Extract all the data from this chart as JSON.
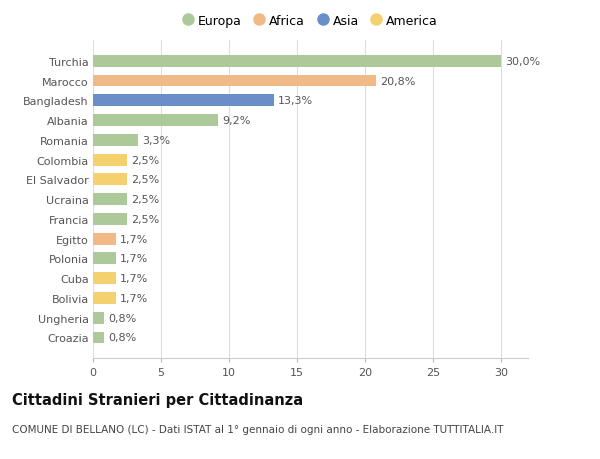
{
  "categories": [
    "Turchia",
    "Marocco",
    "Bangladesh",
    "Albania",
    "Romania",
    "Colombia",
    "El Salvador",
    "Ucraina",
    "Francia",
    "Egitto",
    "Polonia",
    "Cuba",
    "Bolivia",
    "Ungheria",
    "Croazia"
  ],
  "values": [
    30.0,
    20.8,
    13.3,
    9.2,
    3.3,
    2.5,
    2.5,
    2.5,
    2.5,
    1.7,
    1.7,
    1.7,
    1.7,
    0.8,
    0.8
  ],
  "labels": [
    "30,0%",
    "20,8%",
    "13,3%",
    "9,2%",
    "3,3%",
    "2,5%",
    "2,5%",
    "2,5%",
    "2,5%",
    "1,7%",
    "1,7%",
    "1,7%",
    "1,7%",
    "0,8%",
    "0,8%"
  ],
  "continents": [
    "Europa",
    "Africa",
    "Asia",
    "Europa",
    "Europa",
    "America",
    "America",
    "Europa",
    "Europa",
    "Africa",
    "Europa",
    "America",
    "America",
    "Europa",
    "Europa"
  ],
  "colors": {
    "Europa": "#adc899",
    "Africa": "#f0b985",
    "Asia": "#6a8fc8",
    "America": "#f5d06e"
  },
  "bg_color": "#ffffff",
  "grid_color": "#dddddd",
  "title": "Cittadini Stranieri per Cittadinanza",
  "subtitle": "COMUNE DI BELLANO (LC) - Dati ISTAT al 1° gennaio di ogni anno - Elaborazione TUTTITALIA.IT",
  "xlim": [
    0,
    32
  ],
  "xticks": [
    0,
    5,
    10,
    15,
    20,
    25,
    30
  ],
  "bar_height": 0.6,
  "label_fontsize": 8,
  "tick_fontsize": 8,
  "title_fontsize": 10.5,
  "subtitle_fontsize": 7.5,
  "legend_entries": [
    "Europa",
    "Africa",
    "Asia",
    "America"
  ]
}
